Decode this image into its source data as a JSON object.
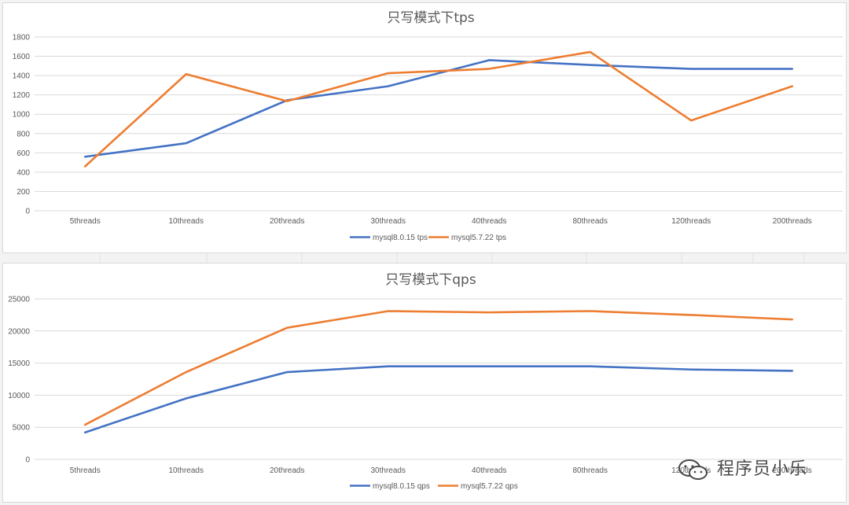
{
  "colors": {
    "series_blue": "#4472C4",
    "series_orange": "#ED7D31",
    "grid": "#d9d9d9",
    "text": "#595959"
  },
  "watermark": {
    "icon": "wechat-logo",
    "text": "程序员小乐"
  },
  "chart_data": [
    {
      "type": "line",
      "title": "只写模式下tps",
      "categories": [
        "5threads",
        "10threads",
        "20threads",
        "30threads",
        "40threads",
        "80threads",
        "120threads",
        "200threads"
      ],
      "yticks": [
        0,
        200,
        400,
        600,
        800,
        1000,
        1200,
        1400,
        1600,
        1800
      ],
      "ylim": [
        0,
        1800
      ],
      "grid": true,
      "legend_position": "bottom",
      "series": [
        {
          "name": "mysql8.0.15 tps",
          "color": "#4472C4",
          "values": [
            560,
            700,
            1145,
            1290,
            1560,
            1510,
            1470,
            1470
          ]
        },
        {
          "name": "mysql5.7.22 tps",
          "color": "#ED7D31",
          "values": [
            460,
            1415,
            1135,
            1425,
            1470,
            1645,
            935,
            1290
          ]
        }
      ]
    },
    {
      "type": "line",
      "title": "只写模式下qps",
      "categories": [
        "5threads",
        "10threads",
        "20threads",
        "30threads",
        "40threads",
        "80threads",
        "120threads",
        "200threads"
      ],
      "yticks": [
        0,
        5000,
        10000,
        15000,
        20000,
        25000
      ],
      "ylim": [
        0,
        25000
      ],
      "grid": true,
      "legend_position": "bottom",
      "series": [
        {
          "name": "mysql8.0.15 qps",
          "color": "#4472C4",
          "values": [
            4200,
            9500,
            13600,
            14500,
            14500,
            14500,
            14000,
            13800
          ]
        },
        {
          "name": "mysql5.7.22 qps",
          "color": "#ED7D31",
          "values": [
            5400,
            13600,
            20500,
            23100,
            22900,
            23100,
            22500,
            21800
          ]
        }
      ]
    }
  ]
}
